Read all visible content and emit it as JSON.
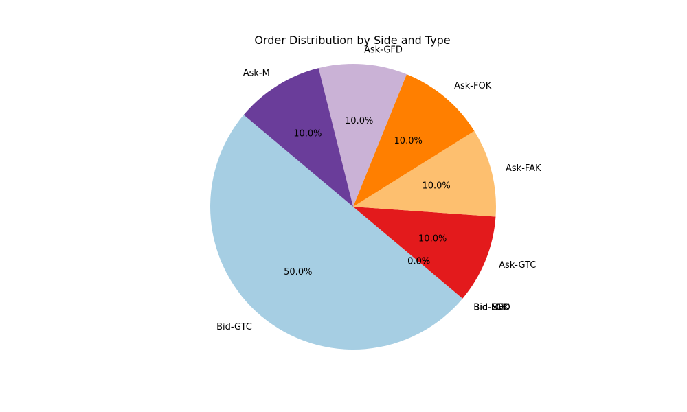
{
  "chart_data": {
    "type": "pie",
    "title": "Order Distribution by Side and Type",
    "start_angle_deg": 140,
    "direction": "counterclockwise",
    "slices": [
      {
        "label": "Bid-GTC",
        "value": 50.0,
        "pct_label": "50.0%",
        "color": "#a6cee3"
      },
      {
        "label": "Bid-FAK",
        "value": 0.0,
        "pct_label": "0.0%",
        "color": "#1f78b4"
      },
      {
        "label": "Bid-FOK",
        "value": 0.0,
        "pct_label": "0.0%",
        "color": "#b2df8a"
      },
      {
        "label": "Bid-GFD",
        "value": 0.0,
        "pct_label": "0.0%",
        "color": "#33a02c"
      },
      {
        "label": "Bid-M",
        "value": 0.0,
        "pct_label": "0.0%",
        "color": "#fb9a99"
      },
      {
        "label": "Ask-GTC",
        "value": 10.0,
        "pct_label": "10.0%",
        "color": "#e31a1c"
      },
      {
        "label": "Ask-FAK",
        "value": 10.0,
        "pct_label": "10.0%",
        "color": "#fdbf6f"
      },
      {
        "label": "Ask-FOK",
        "value": 10.0,
        "pct_label": "10.0%",
        "color": "#ff7f00"
      },
      {
        "label": "Ask-GFD",
        "value": 10.0,
        "pct_label": "10.0%",
        "color": "#cab2d6"
      },
      {
        "label": "Ask-M",
        "value": 10.0,
        "pct_label": "10.0%",
        "color": "#6a3d9a"
      }
    ]
  }
}
